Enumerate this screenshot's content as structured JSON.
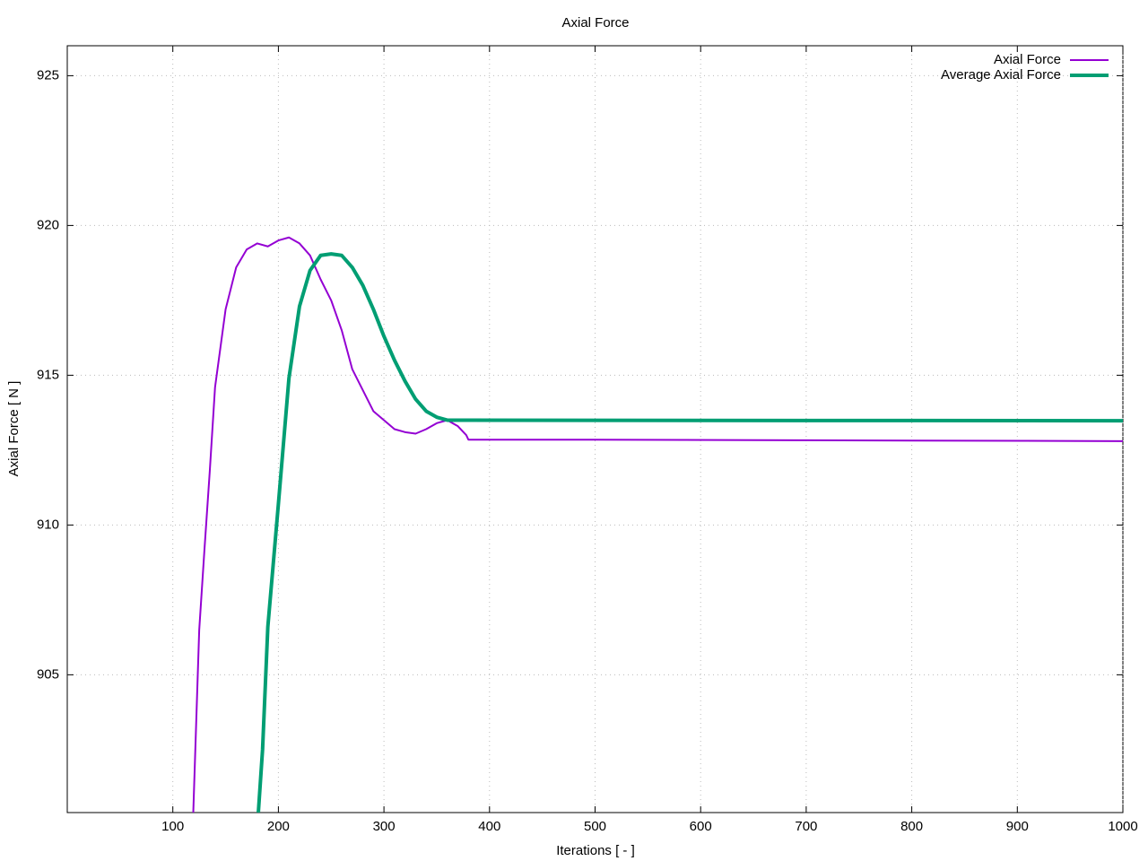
{
  "chart_data": {
    "type": "line",
    "title": "Axial Force",
    "x_label": "Iterations [ - ]",
    "y_label": "Axial Force [ N ]",
    "xlim": [
      0,
      1000
    ],
    "ylim": [
      900.4,
      926
    ],
    "xticks": [
      100,
      200,
      300,
      400,
      500,
      600,
      700,
      800,
      900,
      1000
    ],
    "yticks": [
      905,
      910,
      915,
      920,
      925
    ],
    "grid": true,
    "legend": "top-right",
    "series": [
      {
        "name": "Axial Force",
        "color": "#9400d3",
        "width": 2,
        "x": [
          119,
          125,
          130,
          135,
          140,
          150,
          160,
          170,
          180,
          190,
          200,
          210,
          220,
          230,
          240,
          250,
          260,
          270,
          280,
          290,
          300,
          310,
          320,
          330,
          340,
          350,
          360,
          370,
          378,
          380,
          500,
          700,
          1000
        ],
        "values": [
          900,
          906.5,
          909.2,
          911.8,
          914.6,
          917.2,
          918.6,
          919.2,
          919.4,
          919.3,
          919.5,
          919.6,
          919.4,
          919,
          918.2,
          917.5,
          916.5,
          915.2,
          914.5,
          913.8,
          913.5,
          913.2,
          913.1,
          913.05,
          913.2,
          913.4,
          913.5,
          913.3,
          913,
          912.85,
          912.85,
          912.83,
          912.8
        ]
      },
      {
        "name": "Average Axial Force",
        "color": "#009e73",
        "width": 4,
        "x": [
          181,
          185,
          190,
          200,
          210,
          220,
          230,
          240,
          250,
          260,
          270,
          280,
          290,
          300,
          310,
          320,
          330,
          340,
          350,
          360,
          378,
          1000
        ],
        "values": [
          900.4,
          902.5,
          906.6,
          910.7,
          914.9,
          917.3,
          918.5,
          919,
          919.05,
          919,
          918.6,
          918,
          917.2,
          916.3,
          915.5,
          914.8,
          914.2,
          913.8,
          913.6,
          913.5,
          913.5,
          913.48
        ]
      }
    ]
  }
}
